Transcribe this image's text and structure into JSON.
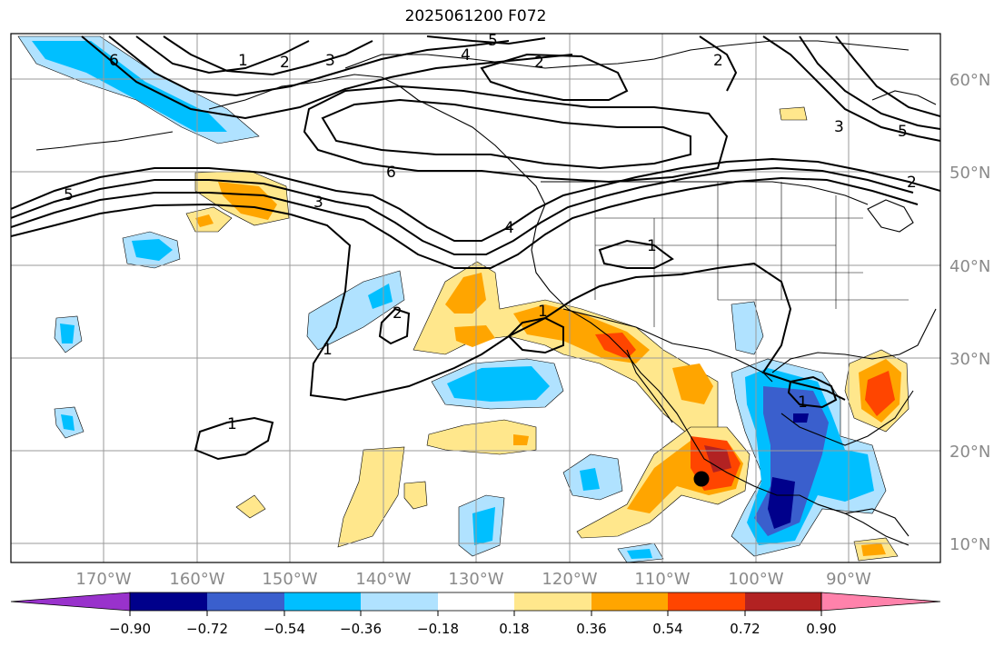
{
  "title": "2025061200 F072",
  "map": {
    "lat_labels": [
      "60°N",
      "50°N",
      "40°N",
      "30°N",
      "20°N",
      "10°N"
    ],
    "lon_labels": [
      "170°W",
      "160°W",
      "150°W",
      "140°W",
      "130°W",
      "120°W",
      "110°W",
      "100°W",
      "90°W"
    ],
    "contour_labels": [
      "1",
      "2",
      "3",
      "4",
      "5",
      "6",
      "2",
      "6",
      "5",
      "3",
      "2",
      "4",
      "1",
      "2",
      "1",
      "1",
      "1",
      "1",
      "3",
      "5",
      "2"
    ],
    "marker": "storm-center-dot"
  },
  "colorbar": {
    "ticks": [
      "−0.90",
      "−0.72",
      "−0.54",
      "−0.36",
      "−0.18",
      "0.18",
      "0.36",
      "0.54",
      "0.72",
      "0.90"
    ],
    "colors": [
      "#9932cc",
      "#00008b",
      "#3a5fcd",
      "#00bfff",
      "#b0e2ff",
      "#ffffff",
      "#ffe78c",
      "#ffa500",
      "#ff4500",
      "#b22222",
      "#ff82ab"
    ]
  }
}
